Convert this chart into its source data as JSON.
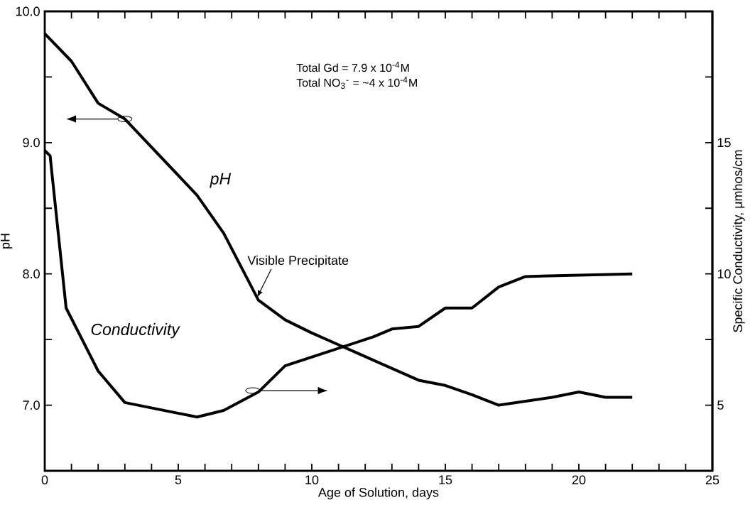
{
  "chart_data": {
    "type": "line",
    "xlabel": "Age of Solution, days",
    "ylabel": "pH",
    "y2label": "Specific Conductivity, μmhos/cm",
    "annotations": [
      {
        "text": "Visible Precipitate",
        "x": 7.95,
        "y": 7.82
      },
      "Total Gd = 7.9 x 10$^{-4}$M",
      "Total NO$_{3}$$^{-}$ = ~4 x 10$^{-4}$M"
    ],
    "series": [
      {
        "name": "pH",
        "color": "#000000",
        "x": [
          0,
          1,
          2,
          3,
          5.7,
          6.7,
          8,
          9,
          10,
          11,
          12,
          13,
          14,
          15,
          16,
          17,
          18,
          19,
          20,
          21,
          22
        ],
        "values": [
          9.83,
          9.62,
          9.3,
          9.18,
          8.6,
          8.31,
          7.8,
          7.65,
          7.55,
          7.46,
          7.37,
          7.28,
          7.19,
          7.15,
          7.08,
          7.0,
          7.03,
          7.06,
          7.1,
          7.06,
          7.06
        ]
      },
      {
        "name": "Conductivity",
        "color": "#000000",
        "axis": "y2",
        "x": [
          0,
          0.2,
          0.8,
          2,
          3,
          5.7,
          6.7,
          8,
          9,
          12.3,
          13,
          14,
          15,
          16,
          17,
          18,
          22
        ],
        "values": [
          14.7,
          14.5,
          8.7,
          6.3,
          5.1,
          4.55,
          4.8,
          5.5,
          6.5,
          7.6,
          7.9,
          8.0,
          8.7,
          8.7,
          9.5,
          9.9,
          10.0
        ]
      }
    ],
    "xlim": [
      0,
      25
    ],
    "xticks": [
      0,
      {
        "value": 1,
        "label": null
      },
      {
        "value": 2,
        "label": null
      },
      {
        "value": 3,
        "label": null
      },
      {
        "value": 4,
        "label": null
      },
      5,
      {
        "value": 6,
        "label": null
      },
      {
        "value": 7,
        "label": null
      },
      {
        "value": 8,
        "label": null
      },
      {
        "value": 9,
        "label": null
      },
      10,
      {
        "value": 11,
        "label": null
      },
      {
        "value": 12,
        "label": null
      },
      {
        "value": 13,
        "label": null
      },
      {
        "value": 14,
        "label": null
      },
      15,
      {
        "value": 16,
        "label": null
      },
      {
        "value": 17,
        "label": null
      },
      {
        "value": 18,
        "label": null
      },
      {
        "value": 19,
        "label": null
      },
      20,
      {
        "value": 21,
        "label": null
      },
      {
        "value": 22,
        "label": null
      },
      {
        "value": 23,
        "label": null
      },
      {
        "value": 24,
        "label": null
      },
      25
    ],
    "ylim": [
      6.5,
      10.0
    ],
    "yticks": [
      {
        "value": 7.0,
        "label": "7.0"
      },
      {
        "value": 7.5,
        "label": null
      },
      {
        "value": 8.0,
        "label": "8.0"
      },
      {
        "value": 8.5,
        "label": null
      },
      {
        "value": 9.0,
        "label": "9.0"
      },
      {
        "value": 9.5,
        "label": null
      },
      {
        "value": 10.0,
        "label": "10.0"
      }
    ],
    "y2lim": [
      2.5,
      20
    ],
    "y2ticks": [
      5,
      {
        "value": 7.5,
        "label": null
      },
      10,
      {
        "value": 12.5,
        "label": null
      },
      15,
      {
        "value": 17.5,
        "label": null
      }
    ],
    "grid": false,
    "legend": false,
    "marker": "none",
    "line_style": "solid"
  }
}
